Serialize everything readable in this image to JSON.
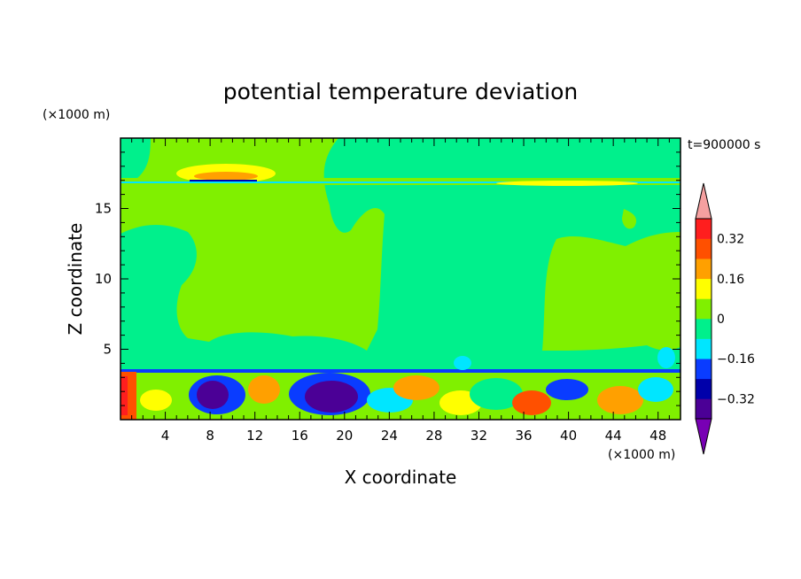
{
  "chart_data": {
    "type": "heatmap",
    "title": "potential temperature deviation",
    "time_label": "t=900000 s",
    "xlabel": "X coordinate",
    "ylabel": "Z coordinate",
    "x_unit": "(×1000 m)",
    "y_unit": "(×1000 m)",
    "xlim": [
      0,
      50
    ],
    "ylim": [
      0,
      20
    ],
    "x_ticks": [
      4,
      8,
      12,
      16,
      20,
      24,
      28,
      32,
      36,
      40,
      44,
      48
    ],
    "y_ticks": [
      5,
      10,
      15
    ],
    "colorbar": {
      "levels": [
        -0.4,
        -0.32,
        -0.24,
        -0.16,
        -0.08,
        0,
        0.08,
        0.16,
        0.24,
        0.32,
        0.4
      ],
      "labels": [
        "0.32",
        "0.16",
        "0",
        "−0.16",
        "−0.32"
      ],
      "label_values": [
        0.32,
        0.16,
        0,
        -0.16,
        -0.32
      ],
      "colors_low_to_high": [
        "#4b0096",
        "#0000aa",
        "#0a3cff",
        "#00e6ff",
        "#00f08c",
        "#80f000",
        "#ffff00",
        "#ffa000",
        "#ff5000",
        "#ff1e1e"
      ],
      "under_color": "#7800b4",
      "over_color": "#f5a0a0"
    }
  }
}
